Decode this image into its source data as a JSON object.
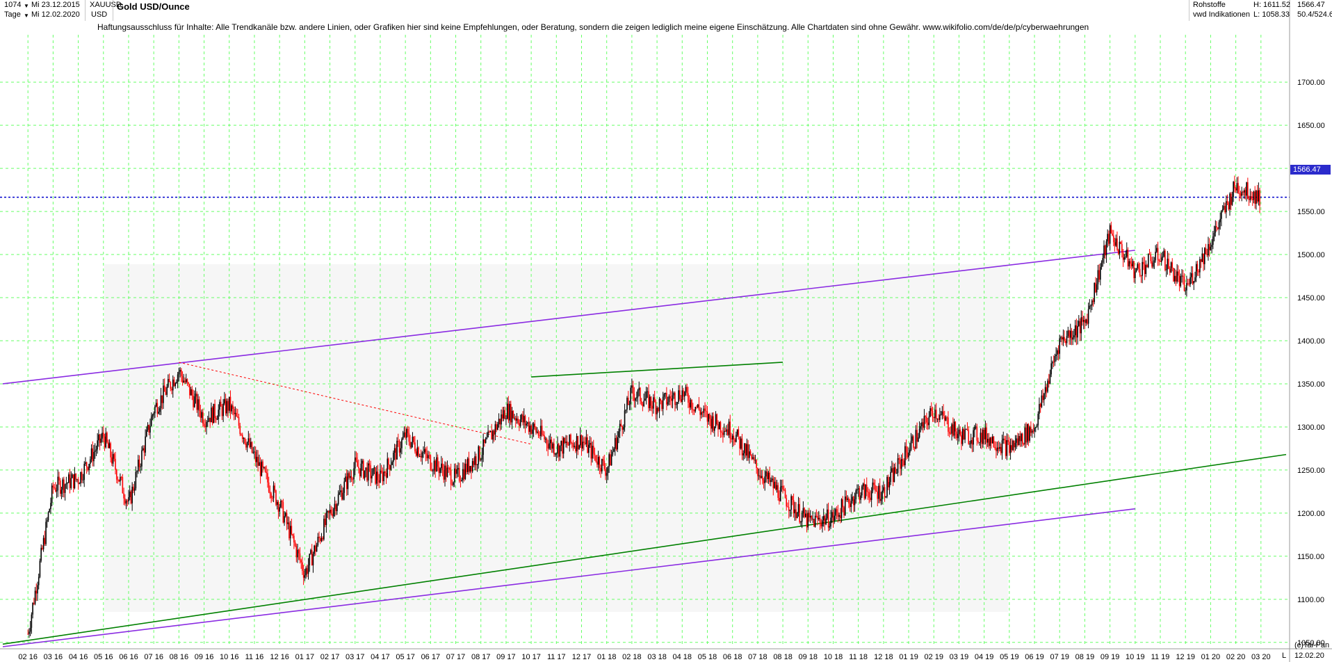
{
  "header": {
    "bar_count": "1074",
    "start_date": "Mi 23.12.2015",
    "period": "Tage",
    "end_date": "Mi 12.02.2020",
    "symbol": "XAUUSD",
    "currency": "USD",
    "title": "Gold USD/Ounce",
    "disclaimer": "Haftungsausschluss für Inhalte: Alle Trendkanäle bzw. andere Linien, oder Grafiken hier sind keine Empfehlungen, oder Beratung, sondern die zeigen lediglich meine eigene Einschätzung. Alle Chartdaten sind ohne Gewähr.  www.wikifolio.com/de/de/p/cyberwaehrungen",
    "category": "Rohstoffe",
    "indicator": "vwd Indikationen",
    "high_label": "H: 1611.52",
    "low_label": "L: 1058.33",
    "last_price": "1566.47",
    "range_label": "50.4/524.6"
  },
  "footer": {
    "copyright": "(c)Tai-Pan",
    "end_label": "L",
    "date_label": "12.02.20"
  },
  "colors": {
    "up": "#000000",
    "down": "#ff0000",
    "grid": "#66ff66",
    "resistance": "#ff0000",
    "support_line": "#008000",
    "channel": "#8a2be2",
    "projection": "#87cefa",
    "last_price_line": "#0000cc"
  },
  "chart_data": {
    "type": "candlestick",
    "title": "Gold USD/Ounce",
    "ylim": [
      1045,
      1755
    ],
    "y_ticks": [
      1050,
      1100,
      1150,
      1200,
      1250,
      1300,
      1350,
      1400,
      1450,
      1500,
      1550,
      1600,
      1650,
      1700
    ],
    "x_ticks": [
      "02 16",
      "03 16",
      "04 16",
      "05 16",
      "06 16",
      "07 16",
      "08 16",
      "09 16",
      "10 16",
      "11 16",
      "12 16",
      "01 17",
      "02 17",
      "03 17",
      "04 17",
      "05 17",
      "06 17",
      "07 17",
      "08 17",
      "09 17",
      "10 17",
      "11 17",
      "12 17",
      "01 18",
      "02 18",
      "03 18",
      "04 18",
      "05 18",
      "06 18",
      "07 18",
      "08 18",
      "09 18",
      "10 18",
      "11 18",
      "12 18",
      "01 19",
      "02 19",
      "03 19",
      "04 19",
      "05 19",
      "06 19",
      "07 19",
      "08 19",
      "09 19",
      "10 19",
      "11 19",
      "12 19",
      "01 20",
      "02 20",
      "03 20"
    ],
    "grid": true,
    "last_price": 1566.47,
    "high": 1611.52,
    "low": 1058.33,
    "price_path": [
      [
        "2016-01",
        1060
      ],
      [
        "2016-02",
        1230
      ],
      [
        "2016-03",
        1240
      ],
      [
        "2016-04",
        1290
      ],
      [
        "2016-05",
        1210
      ],
      [
        "2016-06",
        1320
      ],
      [
        "2016-07",
        1365
      ],
      [
        "2016-08",
        1310
      ],
      [
        "2016-09",
        1325
      ],
      [
        "2016-10",
        1265
      ],
      [
        "2016-11",
        1210
      ],
      [
        "2016-12",
        1130
      ],
      [
        "2017-01",
        1200
      ],
      [
        "2017-02",
        1255
      ],
      [
        "2017-03",
        1240
      ],
      [
        "2017-04",
        1290
      ],
      [
        "2017-05",
        1260
      ],
      [
        "2017-06",
        1240
      ],
      [
        "2017-07",
        1270
      ],
      [
        "2017-08",
        1320
      ],
      [
        "2017-09",
        1300
      ],
      [
        "2017-10",
        1275
      ],
      [
        "2017-11",
        1285
      ],
      [
        "2017-12",
        1250
      ],
      [
        "2018-01",
        1340
      ],
      [
        "2018-02",
        1325
      ],
      [
        "2018-03",
        1340
      ],
      [
        "2018-04",
        1310
      ],
      [
        "2018-05",
        1295
      ],
      [
        "2018-06",
        1250
      ],
      [
        "2018-07",
        1220
      ],
      [
        "2018-08",
        1190
      ],
      [
        "2018-09",
        1195
      ],
      [
        "2018-10",
        1225
      ],
      [
        "2018-11",
        1225
      ],
      [
        "2018-12",
        1275
      ],
      [
        "2019-01",
        1320
      ],
      [
        "2019-02",
        1290
      ],
      [
        "2019-03",
        1290
      ],
      [
        "2019-04",
        1275
      ],
      [
        "2019-05",
        1300
      ],
      [
        "2019-06",
        1400
      ],
      [
        "2019-07",
        1420
      ],
      [
        "2019-08",
        1525
      ],
      [
        "2019-09",
        1480
      ],
      [
        "2019-10",
        1500
      ],
      [
        "2019-11",
        1460
      ],
      [
        "2019-12",
        1515
      ],
      [
        "2020-01",
        1580
      ],
      [
        "2020-02",
        1566
      ]
    ],
    "trendlines": [
      {
        "from": [
          "2015-12",
          1350
        ],
        "to": [
          "2019-09",
          1505
        ],
        "style": "channel"
      },
      {
        "from": [
          "2015-12",
          1045
        ],
        "to": [
          "2019-09",
          1205
        ],
        "style": "channel"
      },
      {
        "from": [
          "2015-12",
          1048
        ],
        "to": [
          "2020-03",
          1268
        ],
        "style": "support"
      },
      {
        "from": [
          "2016-07",
          1375
        ],
        "to": [
          "2017-09",
          1280
        ],
        "style": "resistance"
      },
      {
        "from": [
          "2017-09",
          1358
        ],
        "to": [
          "2018-07",
          1375
        ],
        "style": "support"
      }
    ]
  }
}
